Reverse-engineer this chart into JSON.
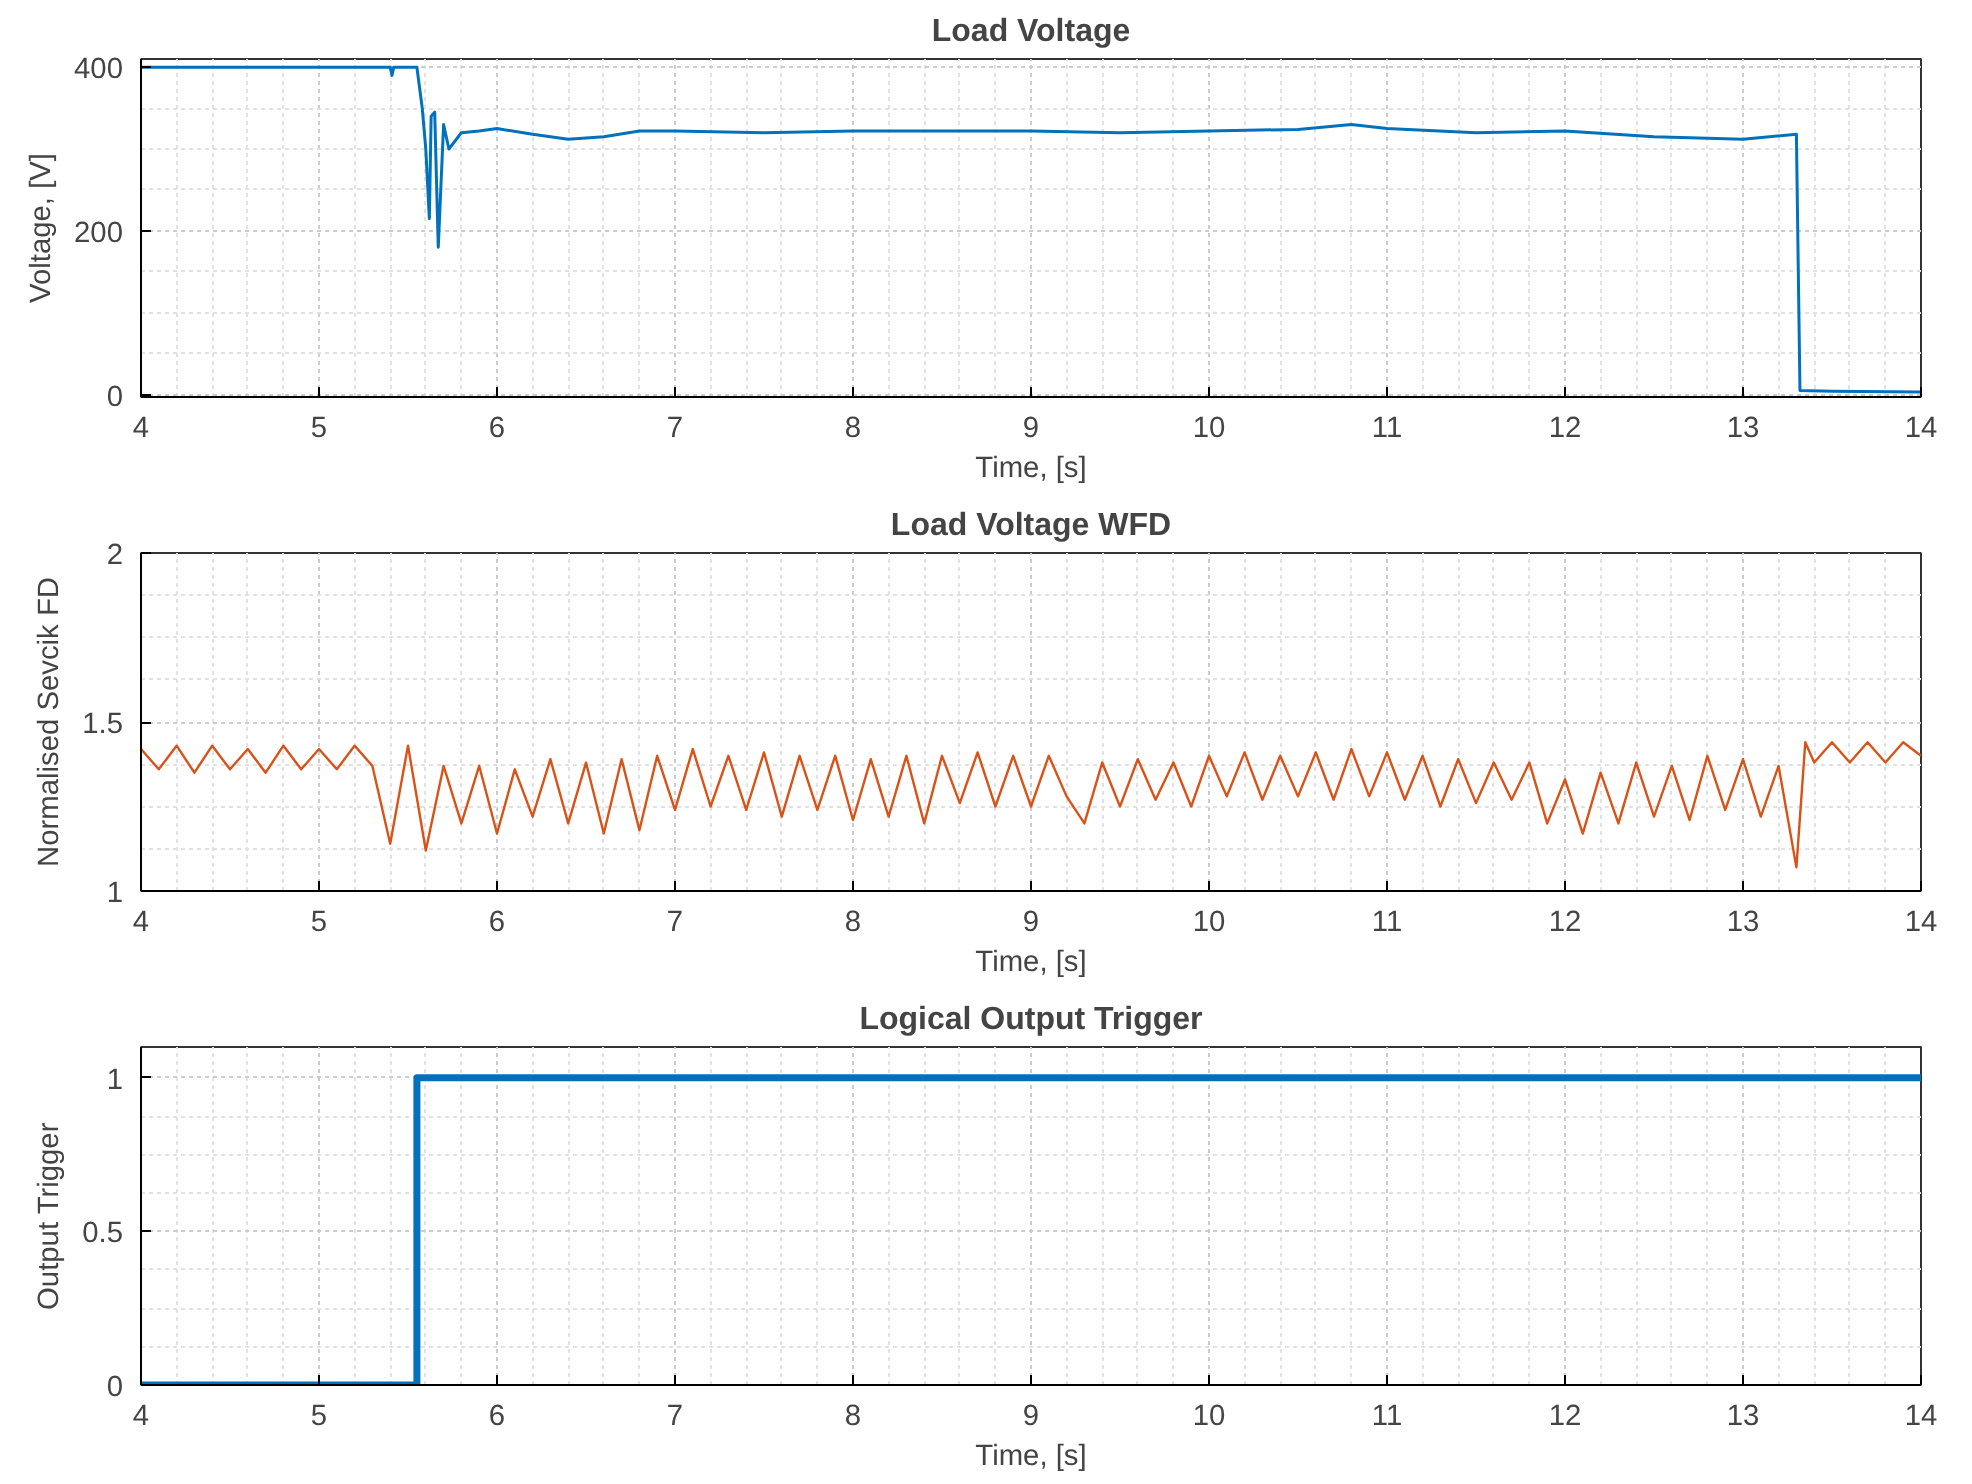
{
  "chart_data": [
    {
      "type": "line",
      "title": "Load Voltage",
      "xlabel": "Time, [s]",
      "ylabel": "Voltage, [V]",
      "xlim": [
        4,
        14
      ],
      "xticks": [
        4,
        5,
        6,
        7,
        8,
        9,
        10,
        11,
        12,
        13,
        14
      ],
      "ylim": [
        -3,
        410
      ],
      "yticks": [
        0,
        200,
        400
      ],
      "grid": true,
      "series": [
        {
          "color": "#0072bd",
          "x": [
            4.0,
            5.4,
            5.41,
            5.42,
            5.5,
            5.55,
            5.58,
            5.6,
            5.62,
            5.63,
            5.65,
            5.67,
            5.7,
            5.73,
            5.8,
            5.9,
            6.0,
            6.2,
            6.4,
            6.6,
            6.8,
            7.0,
            7.5,
            8.0,
            8.5,
            9.0,
            9.5,
            10.0,
            10.5,
            10.8,
            11.0,
            11.5,
            12.0,
            12.5,
            13.0,
            13.3,
            13.32,
            13.5,
            14.0
          ],
          "values": [
            400,
            400,
            390,
            400,
            400,
            400,
            350,
            300,
            215,
            340,
            345,
            180,
            330,
            300,
            320,
            322,
            325,
            318,
            312,
            315,
            322,
            322,
            320,
            322,
            322,
            322,
            320,
            322,
            324,
            330,
            325,
            320,
            322,
            315,
            312,
            318,
            5,
            4,
            3
          ]
        }
      ]
    },
    {
      "type": "line",
      "title": "Load Voltage WFD",
      "xlabel": "Time, [s]",
      "ylabel": "Normalised Sevcik FD",
      "xlim": [
        4,
        14
      ],
      "xticks": [
        4,
        5,
        6,
        7,
        8,
        9,
        10,
        11,
        12,
        13,
        14
      ],
      "ylim": [
        1,
        2
      ],
      "yticks": [
        1,
        1.5,
        2
      ],
      "grid": true,
      "series": [
        {
          "color": "#d95319",
          "x": [
            4.0,
            4.1,
            4.2,
            4.3,
            4.4,
            4.5,
            4.6,
            4.7,
            4.8,
            4.9,
            5.0,
            5.1,
            5.2,
            5.3,
            5.4,
            5.5,
            5.6,
            5.7,
            5.8,
            5.9,
            6.0,
            6.1,
            6.2,
            6.3,
            6.4,
            6.5,
            6.6,
            6.7,
            6.8,
            6.9,
            7.0,
            7.1,
            7.2,
            7.3,
            7.4,
            7.5,
            7.6,
            7.7,
            7.8,
            7.9,
            8.0,
            8.1,
            8.2,
            8.3,
            8.4,
            8.5,
            8.6,
            8.7,
            8.8,
            8.9,
            9.0,
            9.1,
            9.2,
            9.3,
            9.4,
            9.5,
            9.6,
            9.7,
            9.8,
            9.9,
            10.0,
            10.1,
            10.2,
            10.3,
            10.4,
            10.5,
            10.6,
            10.7,
            10.8,
            10.9,
            11.0,
            11.1,
            11.2,
            11.3,
            11.4,
            11.5,
            11.6,
            11.7,
            11.8,
            11.9,
            12.0,
            12.1,
            12.2,
            12.3,
            12.4,
            12.5,
            12.6,
            12.7,
            12.8,
            12.9,
            13.0,
            13.1,
            13.2,
            13.3,
            13.35,
            13.4,
            13.5,
            13.6,
            13.7,
            13.8,
            13.9,
            14.0
          ],
          "values": [
            1.42,
            1.36,
            1.43,
            1.35,
            1.43,
            1.36,
            1.42,
            1.35,
            1.43,
            1.36,
            1.42,
            1.36,
            1.43,
            1.37,
            1.14,
            1.43,
            1.12,
            1.37,
            1.2,
            1.37,
            1.17,
            1.36,
            1.22,
            1.39,
            1.2,
            1.38,
            1.17,
            1.39,
            1.18,
            1.4,
            1.24,
            1.42,
            1.25,
            1.4,
            1.24,
            1.41,
            1.22,
            1.4,
            1.24,
            1.4,
            1.21,
            1.39,
            1.22,
            1.4,
            1.2,
            1.4,
            1.26,
            1.41,
            1.25,
            1.4,
            1.25,
            1.4,
            1.28,
            1.2,
            1.38,
            1.25,
            1.39,
            1.27,
            1.38,
            1.25,
            1.4,
            1.28,
            1.41,
            1.27,
            1.4,
            1.28,
            1.41,
            1.27,
            1.42,
            1.28,
            1.41,
            1.27,
            1.4,
            1.25,
            1.39,
            1.26,
            1.38,
            1.27,
            1.38,
            1.2,
            1.33,
            1.17,
            1.35,
            1.2,
            1.38,
            1.22,
            1.37,
            1.21,
            1.4,
            1.24,
            1.39,
            1.22,
            1.37,
            1.07,
            1.44,
            1.38,
            1.44,
            1.38,
            1.44,
            1.38,
            1.44,
            1.4
          ]
        }
      ]
    },
    {
      "type": "line",
      "title": "Logical Output Trigger",
      "xlabel": "Time, [s]",
      "ylabel": "Output Trigger",
      "xlim": [
        4,
        14
      ],
      "xticks": [
        4,
        5,
        6,
        7,
        8,
        9,
        10,
        11,
        12,
        13,
        14
      ],
      "ylim": [
        0,
        1.1
      ],
      "yticks": [
        0,
        0.5,
        1
      ],
      "grid": true,
      "series": [
        {
          "color": "#0072bd",
          "x": [
            4.0,
            5.55,
            5.55,
            14.0
          ],
          "values": [
            0,
            0,
            1,
            1
          ]
        }
      ]
    }
  ]
}
